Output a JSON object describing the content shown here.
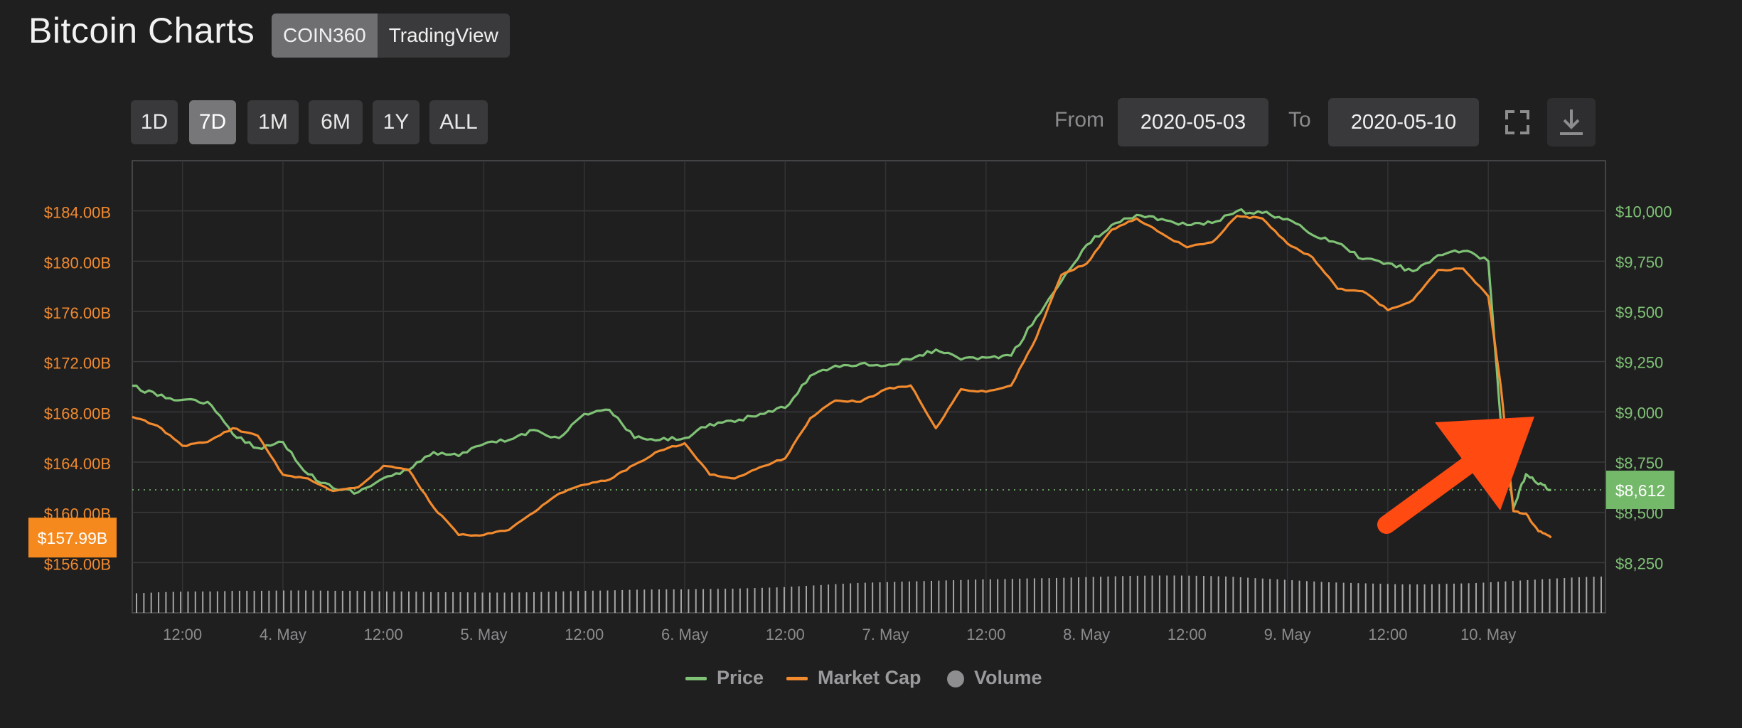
{
  "header": {
    "title": "Bitcoin Charts",
    "sources": [
      "COIN360",
      "TradingView"
    ],
    "active_source": "COIN360"
  },
  "toolbar": {
    "ranges": [
      "1D",
      "7D",
      "1M",
      "6M",
      "1Y",
      "ALL"
    ],
    "active_range": "7D",
    "from_label": "From",
    "from_value": "2020-05-03",
    "to_label": "To",
    "to_value": "2020-05-10",
    "icons": [
      "fullscreen-icon",
      "download-icon"
    ]
  },
  "colors": {
    "price": "#7fc275",
    "market_cap": "#f28a2e",
    "volume": "#bdbdbd",
    "arrow": "#ff4a12",
    "background": "#1f1f20"
  },
  "chart_data": {
    "type": "line",
    "x_range": [
      "2020-05-03 06:00",
      "2020-05-10 14:00"
    ],
    "x_ticks": [
      {
        "t": "2020-05-03 12:00",
        "label": "12:00"
      },
      {
        "t": "2020-05-04 00:00",
        "label": "4. May"
      },
      {
        "t": "2020-05-04 12:00",
        "label": "12:00"
      },
      {
        "t": "2020-05-05 00:00",
        "label": "5. May"
      },
      {
        "t": "2020-05-05 12:00",
        "label": "12:00"
      },
      {
        "t": "2020-05-06 00:00",
        "label": "6. May"
      },
      {
        "t": "2020-05-06 12:00",
        "label": "12:00"
      },
      {
        "t": "2020-05-07 00:00",
        "label": "7. May"
      },
      {
        "t": "2020-05-07 12:00",
        "label": "12:00"
      },
      {
        "t": "2020-05-08 00:00",
        "label": "8. May"
      },
      {
        "t": "2020-05-08 12:00",
        "label": "12:00"
      },
      {
        "t": "2020-05-09 00:00",
        "label": "9. May"
      },
      {
        "t": "2020-05-09 12:00",
        "label": "12:00"
      },
      {
        "t": "2020-05-10 00:00",
        "label": "10. May"
      }
    ],
    "left_axis": {
      "range": [
        152,
        188
      ],
      "ticks": [
        156,
        160,
        164,
        168,
        172,
        176,
        180,
        184
      ],
      "tick_labels": [
        "$156.00B",
        "$160.00B",
        "$164.00B",
        "$168.00B",
        "$172.00B",
        "$176.00B",
        "$180.00B",
        "$184.00B"
      ]
    },
    "right_axis": {
      "range": [
        8000,
        10250
      ],
      "ticks": [
        8250,
        8500,
        8750,
        9000,
        9250,
        9500,
        9750,
        10000
      ],
      "tick_labels": [
        "$8,250",
        "$8,500",
        "$8,750",
        "$9,000",
        "$9,250",
        "$9,500",
        "$9,750",
        "$10,000"
      ]
    },
    "current_market_cap_label": "$157.99B",
    "current_market_cap": 157.99,
    "current_price_label": "$8,612",
    "current_price": 8612,
    "grid": true,
    "legend": {
      "position": "bottom-center",
      "items": [
        "Price",
        "Market Cap",
        "Volume"
      ]
    },
    "series": [
      {
        "name": "Price",
        "axis": "right",
        "x": [
          "2020-05-03 06:00",
          "2020-05-03 09:00",
          "2020-05-03 12:00",
          "2020-05-03 15:00",
          "2020-05-03 18:00",
          "2020-05-03 21:00",
          "2020-05-04 00:00",
          "2020-05-04 03:00",
          "2020-05-04 06:00",
          "2020-05-04 09:00",
          "2020-05-04 12:00",
          "2020-05-04 15:00",
          "2020-05-04 18:00",
          "2020-05-04 21:00",
          "2020-05-05 00:00",
          "2020-05-05 03:00",
          "2020-05-05 06:00",
          "2020-05-05 09:00",
          "2020-05-05 12:00",
          "2020-05-05 15:00",
          "2020-05-05 18:00",
          "2020-05-05 21:00",
          "2020-05-06 00:00",
          "2020-05-06 03:00",
          "2020-05-06 06:00",
          "2020-05-06 09:00",
          "2020-05-06 12:00",
          "2020-05-06 15:00",
          "2020-05-06 18:00",
          "2020-05-06 21:00",
          "2020-05-07 00:00",
          "2020-05-07 03:00",
          "2020-05-07 06:00",
          "2020-05-07 09:00",
          "2020-05-07 12:00",
          "2020-05-07 15:00",
          "2020-05-07 18:00",
          "2020-05-07 21:00",
          "2020-05-08 00:00",
          "2020-05-08 03:00",
          "2020-05-08 06:00",
          "2020-05-08 09:00",
          "2020-05-08 12:00",
          "2020-05-08 15:00",
          "2020-05-08 18:00",
          "2020-05-08 21:00",
          "2020-05-09 00:00",
          "2020-05-09 03:00",
          "2020-05-09 06:00",
          "2020-05-09 09:00",
          "2020-05-09 12:00",
          "2020-05-09 15:00",
          "2020-05-09 18:00",
          "2020-05-09 21:00",
          "2020-05-10 00:00",
          "2020-05-10 01:30",
          "2020-05-10 03:00",
          "2020-05-10 04:30",
          "2020-05-10 06:00",
          "2020-05-10 07:30"
        ],
        "values": [
          9130,
          9080,
          9060,
          9050,
          8890,
          8820,
          8850,
          8690,
          8620,
          8600,
          8670,
          8710,
          8800,
          8780,
          8840,
          8860,
          8910,
          8870,
          8990,
          9010,
          8870,
          8860,
          8870,
          8940,
          8950,
          8990,
          9020,
          9180,
          9230,
          9240,
          9230,
          9260,
          9310,
          9260,
          9270,
          9280,
          9470,
          9650,
          9830,
          9930,
          9980,
          9960,
          9930,
          9940,
          10000,
          9990,
          9960,
          9880,
          9840,
          9760,
          9740,
          9700,
          9780,
          9800,
          9750,
          8950,
          8520,
          8690,
          8640,
          8612
        ]
      },
      {
        "name": "Market Cap",
        "axis": "left",
        "x": [
          "2020-05-03 06:00",
          "2020-05-03 09:00",
          "2020-05-03 12:00",
          "2020-05-03 15:00",
          "2020-05-03 18:00",
          "2020-05-03 21:00",
          "2020-05-04 00:00",
          "2020-05-04 03:00",
          "2020-05-04 06:00",
          "2020-05-04 09:00",
          "2020-05-04 12:00",
          "2020-05-04 15:00",
          "2020-05-04 18:00",
          "2020-05-04 21:00",
          "2020-05-05 00:00",
          "2020-05-05 03:00",
          "2020-05-05 06:00",
          "2020-05-05 09:00",
          "2020-05-05 12:00",
          "2020-05-05 15:00",
          "2020-05-05 18:00",
          "2020-05-05 21:00",
          "2020-05-06 00:00",
          "2020-05-06 03:00",
          "2020-05-06 06:00",
          "2020-05-06 09:00",
          "2020-05-06 12:00",
          "2020-05-06 15:00",
          "2020-05-06 18:00",
          "2020-05-06 21:00",
          "2020-05-07 00:00",
          "2020-05-07 03:00",
          "2020-05-07 06:00",
          "2020-05-07 09:00",
          "2020-05-07 12:00",
          "2020-05-07 15:00",
          "2020-05-07 18:00",
          "2020-05-07 21:00",
          "2020-05-08 00:00",
          "2020-05-08 03:00",
          "2020-05-08 06:00",
          "2020-05-08 09:00",
          "2020-05-08 12:00",
          "2020-05-08 15:00",
          "2020-05-08 18:00",
          "2020-05-08 21:00",
          "2020-05-09 00:00",
          "2020-05-09 03:00",
          "2020-05-09 06:00",
          "2020-05-09 09:00",
          "2020-05-09 12:00",
          "2020-05-09 15:00",
          "2020-05-09 18:00",
          "2020-05-09 21:00",
          "2020-05-10 00:00",
          "2020-05-10 01:30",
          "2020-05-10 03:00",
          "2020-05-10 04:30",
          "2020-05-10 06:00",
          "2020-05-10 07:30"
        ],
        "values": [
          167.6,
          166.9,
          165.3,
          165.6,
          166.7,
          166.1,
          163.0,
          162.7,
          161.7,
          162.0,
          163.7,
          163.4,
          160.4,
          158.2,
          158.2,
          158.6,
          160.0,
          161.5,
          162.2,
          162.6,
          163.8,
          164.9,
          165.5,
          163.0,
          162.7,
          163.6,
          164.3,
          167.5,
          168.9,
          168.8,
          169.8,
          170.1,
          166.7,
          169.8,
          169.6,
          170.1,
          173.9,
          178.9,
          179.8,
          182.5,
          183.4,
          182.2,
          181.1,
          181.5,
          183.6,
          183.4,
          181.4,
          180.3,
          177.8,
          177.6,
          176.1,
          176.9,
          179.3,
          179.4,
          177.2,
          170.0,
          160.1,
          159.9,
          158.5,
          157.99
        ]
      }
    ],
    "volume": {
      "name": "Volume",
      "note_shape": "rises mid-range, peaks around 8. May",
      "relative_values": [
        0.55,
        0.58,
        0.6,
        0.6,
        0.62,
        0.62,
        0.63,
        0.63,
        0.62,
        0.62,
        0.6,
        0.6,
        0.58,
        0.58,
        0.57,
        0.57,
        0.58,
        0.6,
        0.62,
        0.63,
        0.65,
        0.66,
        0.66,
        0.67,
        0.68,
        0.7,
        0.72,
        0.76,
        0.8,
        0.84,
        0.86,
        0.88,
        0.9,
        0.92,
        0.94,
        0.95,
        0.97,
        0.98,
        1.0,
        1.02,
        1.04,
        1.05,
        1.05,
        1.04,
        1.02,
        0.98,
        0.94,
        0.9,
        0.86,
        0.84,
        0.82,
        0.8,
        0.8,
        0.82,
        0.84,
        0.88,
        0.92,
        0.96,
        1.0,
        1.02
      ]
    }
  }
}
